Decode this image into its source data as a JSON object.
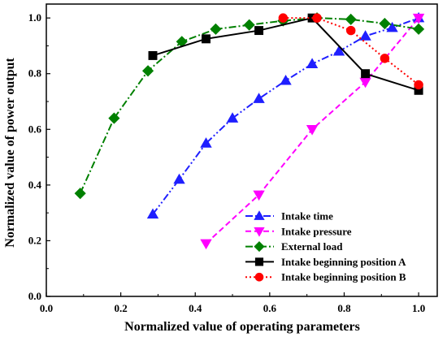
{
  "chart_data": {
    "type": "line",
    "title": "",
    "xlabel": "Normalized value of operating parameters",
    "ylabel": "Normalized value of power output",
    "xlim": [
      0.0,
      1.05
    ],
    "ylim": [
      0.0,
      1.05
    ],
    "xticks": [
      "0.0",
      "0.2",
      "0.4",
      "0.6",
      "0.8",
      "1.0"
    ],
    "yticks": [
      "0.0",
      "0.2",
      "0.4",
      "0.6",
      "0.8",
      "1.0"
    ],
    "grid": false,
    "legend_position": "bottom-right",
    "series": [
      {
        "name": "Intake time",
        "color": "#1f1fff",
        "marker": "triangle-up",
        "line_style": "dash-dot-dot",
        "x": [
          0.286,
          0.357,
          0.429,
          0.5,
          0.571,
          0.643,
          0.714,
          0.786,
          0.857,
          0.929,
          1.0
        ],
        "y": [
          0.295,
          0.42,
          0.55,
          0.64,
          0.71,
          0.775,
          0.835,
          0.88,
          0.935,
          0.965,
          1.0
        ]
      },
      {
        "name": "Intake pressure",
        "color": "#ff00ff",
        "marker": "triangle-down",
        "line_style": "dashed",
        "x": [
          0.429,
          0.571,
          0.714,
          0.857,
          1.0
        ],
        "y": [
          0.19,
          0.365,
          0.6,
          0.77,
          1.0
        ]
      },
      {
        "name": "External load",
        "color": "#008000",
        "marker": "diamond",
        "line_style": "dash-dot",
        "x": [
          0.091,
          0.182,
          0.273,
          0.364,
          0.455,
          0.545,
          0.636,
          0.727,
          0.818,
          0.909,
          1.0
        ],
        "y": [
          0.37,
          0.64,
          0.81,
          0.915,
          0.96,
          0.975,
          0.99,
          1.0,
          0.995,
          0.98,
          0.96
        ]
      },
      {
        "name": "Intake beginning position A",
        "color": "#000000",
        "marker": "square",
        "line_style": "solid",
        "x": [
          0.286,
          0.429,
          0.571,
          0.714,
          0.857,
          1.0
        ],
        "y": [
          0.865,
          0.925,
          0.955,
          1.0,
          0.8,
          0.74
        ]
      },
      {
        "name": "Intake beginning position B",
        "color": "#ff0000",
        "marker": "circle",
        "line_style": "dotted",
        "x": [
          0.636,
          0.727,
          0.818,
          0.909,
          1.0
        ],
        "y": [
          1.0,
          1.0,
          0.955,
          0.855,
          0.76
        ]
      }
    ]
  }
}
